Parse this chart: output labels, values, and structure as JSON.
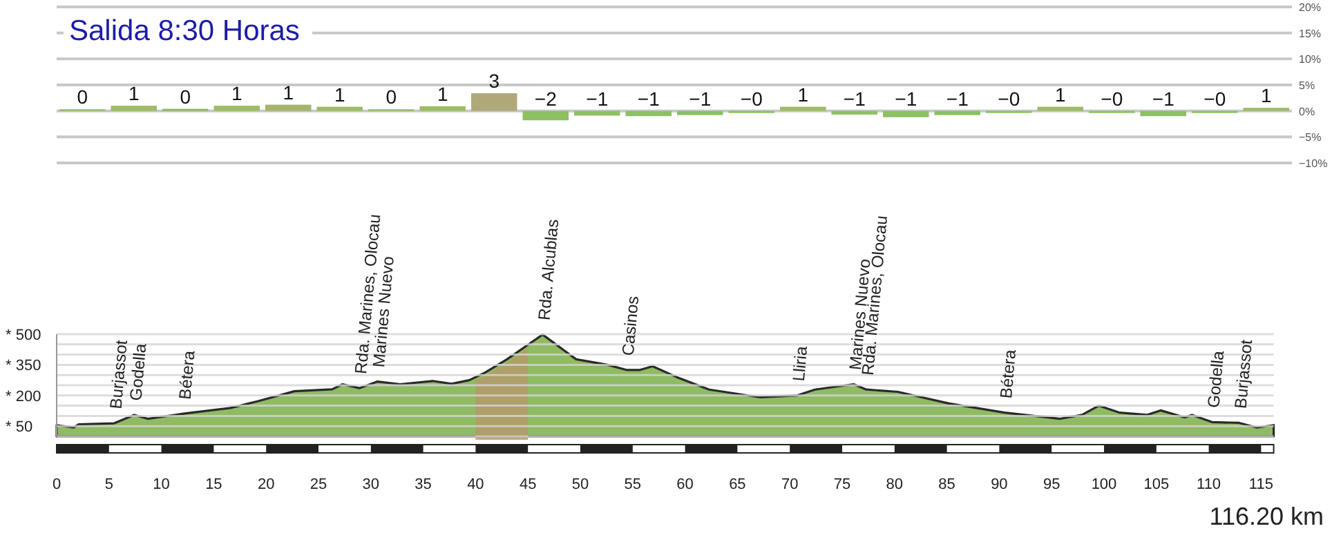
{
  "chart_data": [
    {
      "type": "bar",
      "title": "Salida 8:30 Horas",
      "categories": [
        null,
        null,
        null,
        null,
        null,
        null,
        null,
        null,
        null,
        null,
        null,
        null,
        null,
        null,
        null,
        null,
        null,
        null,
        null,
        null,
        null,
        null,
        null,
        null
      ],
      "values": [
        0.3,
        1.0,
        0.4,
        1.0,
        1.2,
        0.8,
        0.3,
        0.9,
        3.4,
        -1.8,
        -0.9,
        -1.0,
        -0.8,
        -0.4,
        0.8,
        -0.7,
        -1.2,
        -0.8,
        -0.4,
        0.8,
        -0.4,
        -1.0,
        -0.4,
        0.6
      ],
      "colors": [
        "#8db860",
        "#9cbc66",
        "#8db860",
        "#9cbc66",
        "#a4b46c",
        "#9cbc66",
        "#8db860",
        "#9cbc66",
        "#b0a878",
        "#8cc063",
        "#8cc063",
        "#8cc063",
        "#8cc063",
        "#8cc063",
        "#9cbc66",
        "#8cc063",
        "#8cc063",
        "#8cc063",
        "#8cc063",
        "#9cbc66",
        "#8cc063",
        "#8cc063",
        "#8cc063",
        "#9cbc66"
      ],
      "value_labels": [
        "0",
        "1",
        "0",
        "1",
        "1",
        "1",
        "0",
        "1",
        "3",
        "−2",
        "−1",
        "−1",
        "−1",
        "−0",
        "1",
        "−1",
        "−1",
        "−1",
        "−0",
        "1",
        "−0",
        "−1",
        "−0",
        "1"
      ],
      "ylim": [
        -10,
        20
      ],
      "yticks": [
        {
          "value": 20,
          "label": "20%"
        },
        {
          "value": 15,
          "label": "15%"
        },
        {
          "value": 10,
          "label": "10%"
        },
        {
          "value": 5,
          "label": "5%"
        },
        {
          "value": 0,
          "label": "0%"
        },
        {
          "value": -5,
          "label": "−5%"
        },
        {
          "value": -10,
          "label": "−10%"
        }
      ],
      "grid": "y",
      "tick_labels": "y"
    },
    {
      "type": "area",
      "color": "#8fbb62",
      "x": [
        0,
        1.6,
        2.1,
        5.5,
        7.4,
        8.7,
        12.1,
        16.6,
        19.3,
        22.7,
        26.3,
        27.3,
        28.9,
        30.6,
        32.8,
        35.9,
        37.7,
        39.4,
        40.8,
        43.0,
        46.4,
        49.6,
        52.6,
        54.4,
        55.7,
        56.9,
        59.2,
        62.3,
        67.2,
        70.7,
        72.4,
        76.1,
        77.3,
        80.3,
        85.2,
        90.5,
        95.8,
        97.9,
        99.5,
        101.5,
        104.1,
        105.4,
        107.7,
        108.4,
        110.3,
        112.9,
        114.6,
        116.2
      ],
      "values": [
        55,
        43,
        59,
        64,
        105,
        86,
        111,
        139,
        173,
        221,
        230,
        255,
        236,
        268,
        255,
        271,
        257,
        275,
        309,
        377,
        498,
        377,
        350,
        325,
        325,
        343,
        290,
        229,
        191,
        200,
        229,
        255,
        229,
        218,
        161,
        116,
        86,
        105,
        150,
        116,
        105,
        127,
        93,
        105,
        70,
        66,
        43,
        55
      ],
      "xlim": [
        0,
        116.2
      ],
      "xticks": [
        0,
        5,
        10,
        15,
        20,
        25,
        30,
        35,
        40,
        45,
        50,
        55,
        60,
        65,
        70,
        75,
        80,
        85,
        90,
        95,
        100,
        105,
        110,
        115
      ],
      "ylim": [
        0,
        500
      ],
      "yticks": [
        {
          "value": 0,
          "label": null
        },
        {
          "value": 50,
          "label": "* 50"
        },
        {
          "value": 100,
          "label": null
        },
        {
          "value": 150,
          "label": null
        },
        {
          "value": 200,
          "label": "* 200"
        },
        {
          "value": 250,
          "label": null
        },
        {
          "value": 300,
          "label": null
        },
        {
          "value": 350,
          "label": "* 350"
        },
        {
          "value": 400,
          "label": null
        },
        {
          "value": 450,
          "label": null
        },
        {
          "value": 500,
          "label": "* 500"
        }
      ],
      "grid": "y",
      "bands": [
        {
          "axis": "x",
          "from": 40,
          "to": 45,
          "color": "#b59a6a"
        }
      ],
      "annotations": [
        {
          "text": "Burjassot",
          "x": 5.5,
          "y": 64
        },
        {
          "text": "Godella",
          "x": 7.4,
          "y": 105
        },
        {
          "text": "Bétera",
          "x": 12.1,
          "y": 111
        },
        {
          "text": "Rda. Marines, Olocau",
          "x": 28.9,
          "y": 236
        },
        {
          "text": "Marines Nuevo",
          "x": 30.6,
          "y": 268
        },
        {
          "text": "Rda. Alcublas",
          "x": 46.4,
          "y": 498
        },
        {
          "text": "Casinos",
          "x": 54.4,
          "y": 325
        },
        {
          "text": "Lliria",
          "x": 70.7,
          "y": 200
        },
        {
          "text": "Marines Nuevo",
          "x": 76.1,
          "y": 255
        },
        {
          "text": "Rda. Marines, Olocau",
          "x": 77.3,
          "y": 229
        },
        {
          "text": "Bétera",
          "x": 90.5,
          "y": 116
        },
        {
          "text": "Godella",
          "x": 110.3,
          "y": 70
        },
        {
          "text": "Burjassot",
          "x": 112.9,
          "y": 66
        },
        "116.20 km"
      ]
    }
  ]
}
